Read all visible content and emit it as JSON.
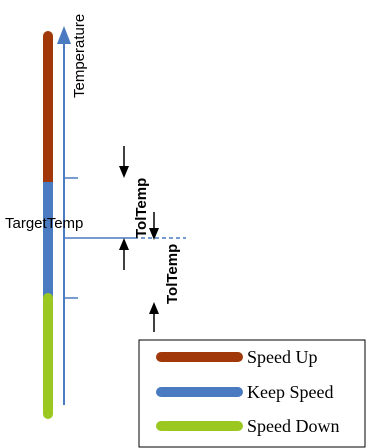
{
  "axis": {
    "label": "Temperature",
    "color": "#4a7ac0"
  },
  "bands": [
    {
      "name": "speed-up",
      "color": "#a0380a"
    },
    {
      "name": "keep-speed",
      "color": "#4a7ac0"
    },
    {
      "name": "speed-down",
      "color": "#9ac820"
    }
  ],
  "labels": {
    "target": "TargetTemp",
    "tol_upper": "TolTemp",
    "tol_lower": "TolTemp"
  },
  "legend": {
    "items": [
      {
        "label": "Speed Up",
        "color": "#a0380a"
      },
      {
        "label": "Keep Speed",
        "color": "#4a7ac0"
      },
      {
        "label": "Speed Down",
        "color": "#9ac820"
      }
    ]
  }
}
